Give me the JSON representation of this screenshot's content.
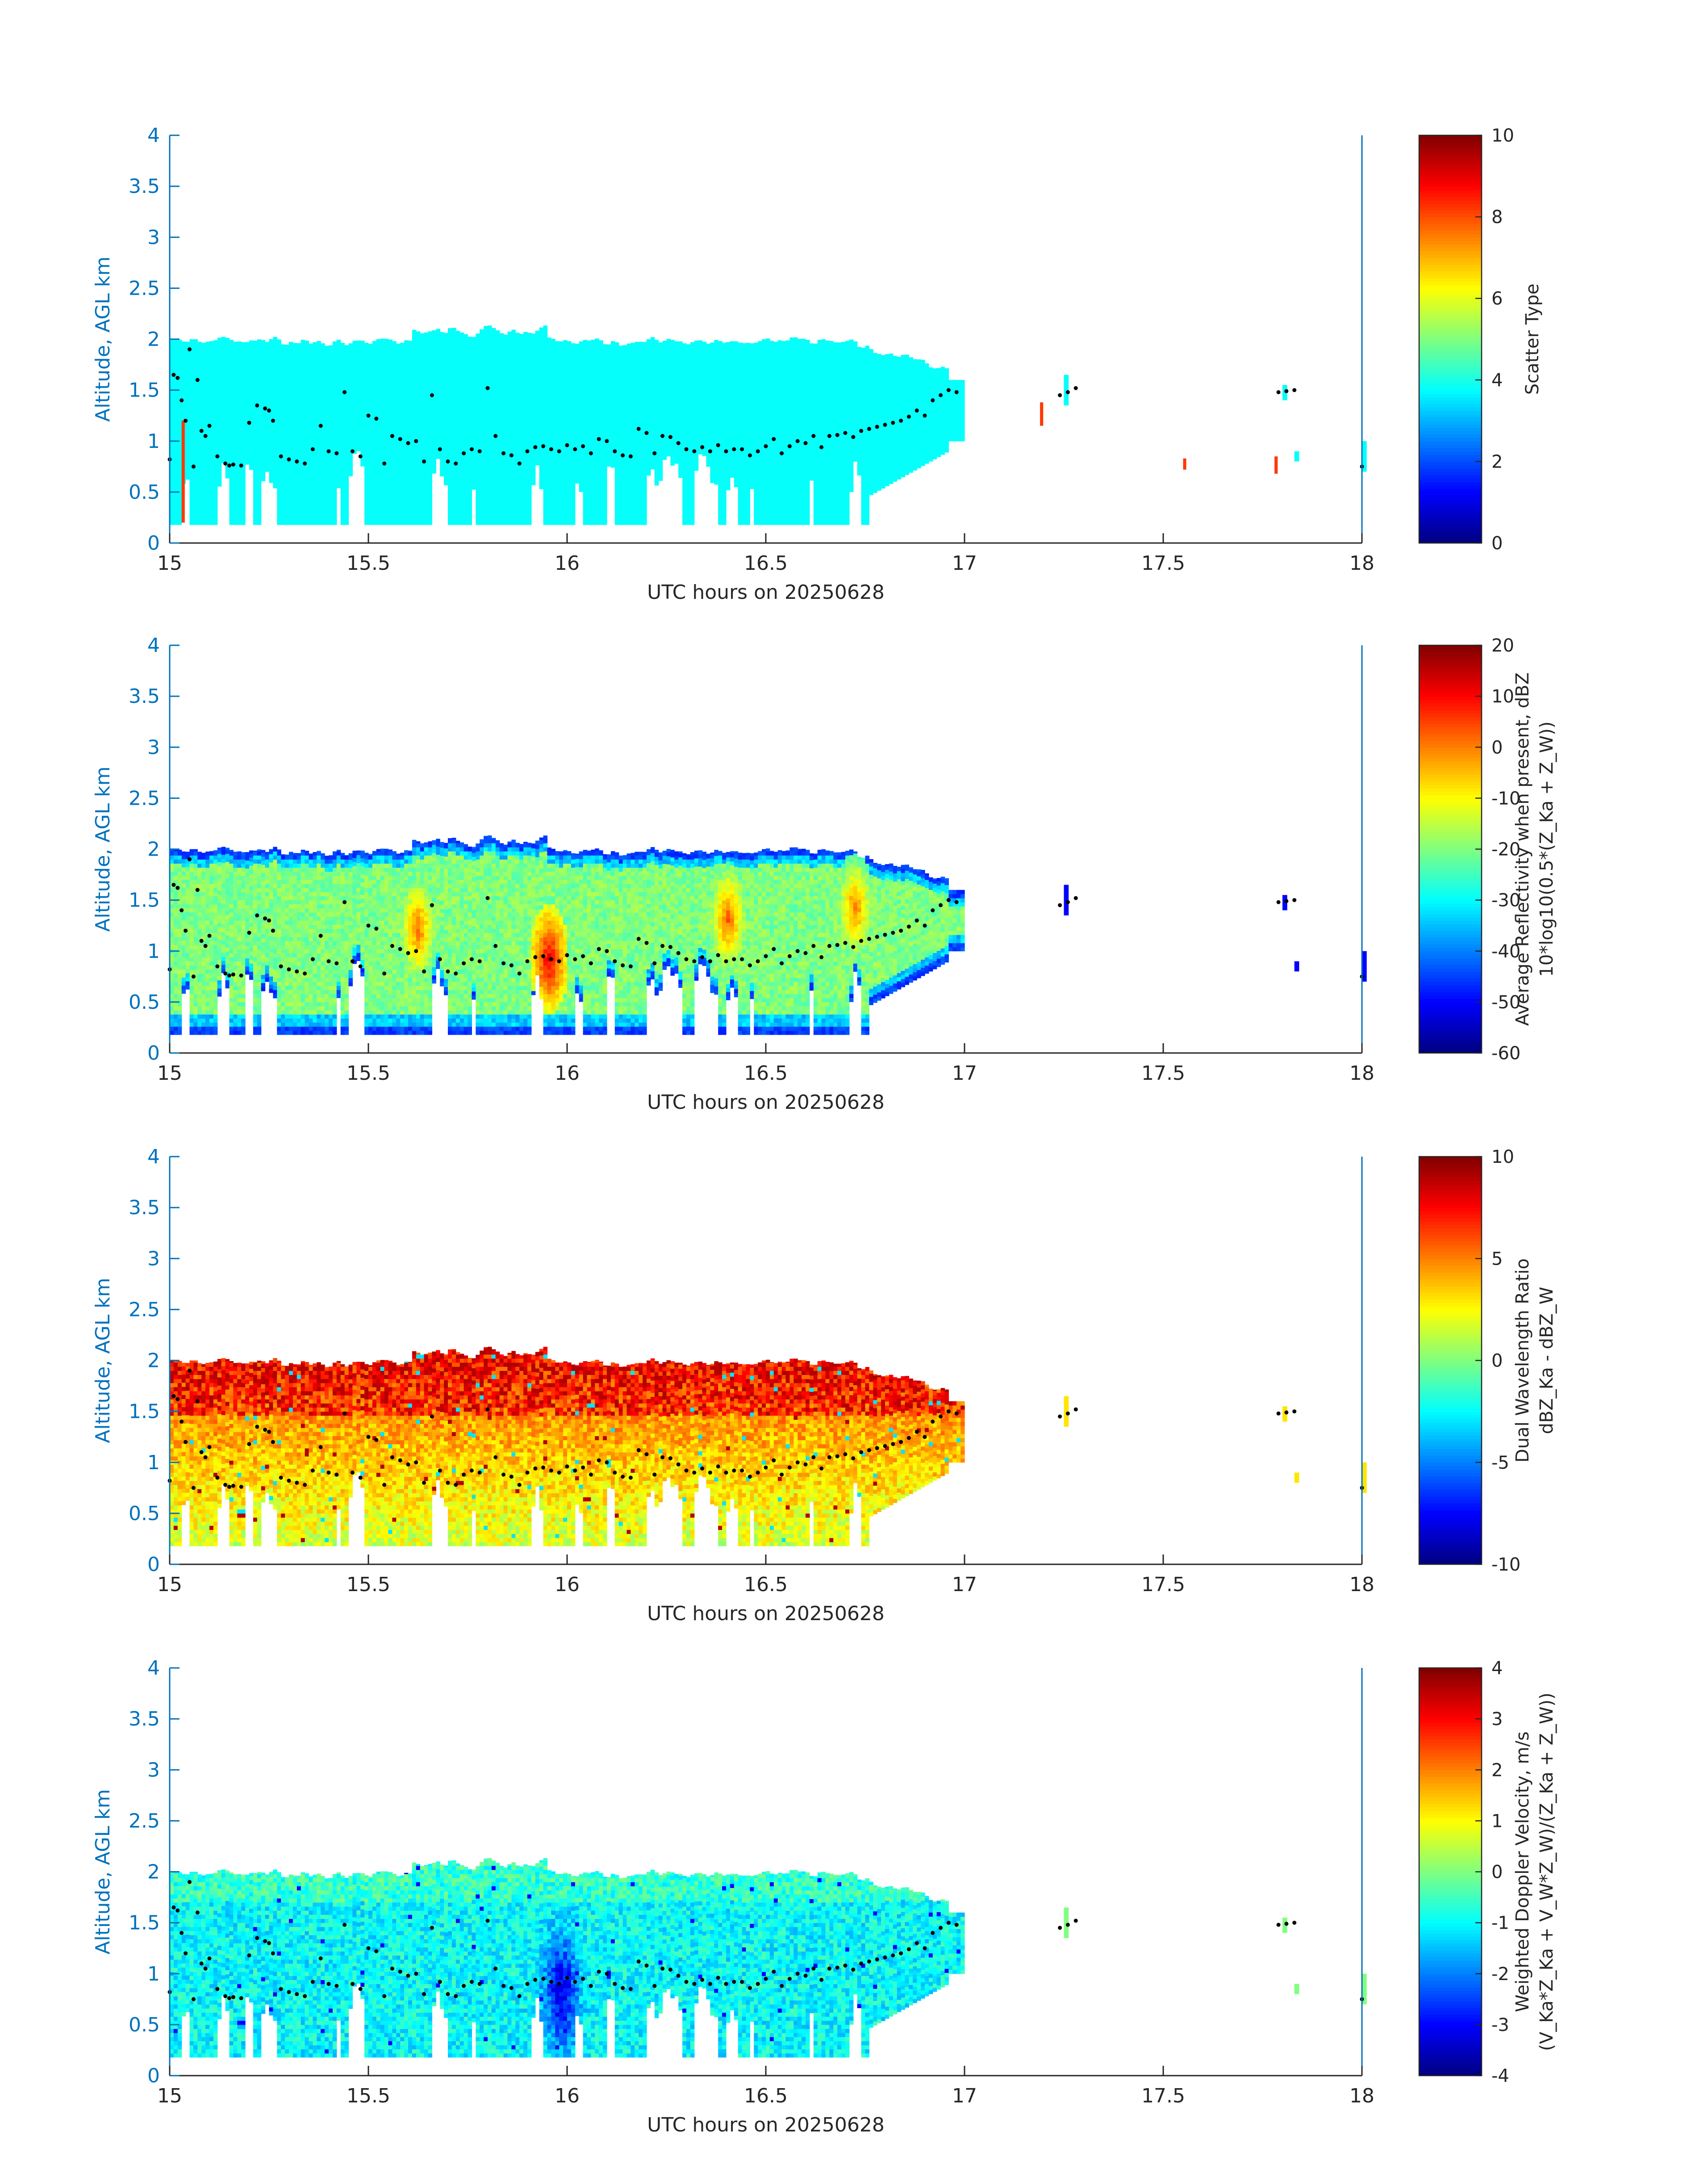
{
  "chart_data": [
    {
      "type": "heatmap",
      "title": "",
      "xlabel": "UTC hours on 20250628",
      "ylabel": "Altitude, AGL km",
      "xlim": [
        15,
        18
      ],
      "ylim": [
        0,
        4
      ],
      "xticks": [
        "15",
        "15.5",
        "16",
        "16.5",
        "17",
        "17.5",
        "18"
      ],
      "yticks": [
        "0",
        "0.5",
        "1",
        "1.5",
        "2",
        "2.5",
        "3",
        "3.5",
        "4"
      ],
      "colorbar": {
        "label_lines": [
          "Scatter Type"
        ],
        "range": [
          0,
          10
        ],
        "ticks": [
          "0",
          "2",
          "4",
          "6",
          "8",
          "10"
        ],
        "colormap": "jet"
      },
      "field": "scatter_type",
      "dominant_value": 3.8,
      "cloud_base_km": 0.8,
      "cloud_top_km": 2.0,
      "cloud_time_range": [
        15.0,
        17.0
      ],
      "scattered_echoes": [
        {
          "x": 17.25,
          "y_range": [
            1.35,
            1.65
          ]
        },
        {
          "x": 17.8,
          "y_range": [
            1.4,
            1.55
          ]
        },
        {
          "x": 17.83,
          "y_range": [
            0.8,
            0.9
          ]
        },
        {
          "x": 18.0,
          "y_range": [
            0.7,
            1.0
          ]
        }
      ],
      "highlight_echoes": [
        {
          "x": 15.03,
          "y_range": [
            0.2,
            1.2
          ],
          "value": 8.2
        },
        {
          "x": 17.19,
          "y_range": [
            1.15,
            1.38
          ],
          "value": 8.2
        },
        {
          "x": 17.55,
          "y_range": [
            0.72,
            0.83
          ],
          "value": 8.2
        },
        {
          "x": 17.78,
          "y_range": [
            0.68,
            0.85
          ],
          "value": 8.2
        }
      ]
    },
    {
      "type": "heatmap",
      "title": "",
      "xlabel": "UTC hours on 20250628",
      "ylabel": "Altitude, AGL km",
      "xlim": [
        15,
        18
      ],
      "ylim": [
        0,
        4
      ],
      "xticks": [
        "15",
        "15.5",
        "16",
        "16.5",
        "17",
        "17.5",
        "18"
      ],
      "yticks": [
        "0",
        "0.5",
        "1",
        "1.5",
        "2",
        "2.5",
        "3",
        "3.5",
        "4"
      ],
      "colorbar": {
        "label_lines": [
          "Average Reflectivity when present, dBZ",
          "10*log10(0.5*(Z_Ka + Z_W))"
        ],
        "range": [
          -60,
          20
        ],
        "ticks": [
          "-60",
          "-50",
          "-40",
          "-30",
          "-20",
          "-10",
          "0",
          "10",
          "20"
        ],
        "colormap": "jet"
      },
      "field": "reflectivity_dbz",
      "edge_value": -48,
      "interior_value": -20,
      "core_maxima": [
        {
          "x": 15.62,
          "y": 1.2,
          "value": 2
        },
        {
          "x": 15.95,
          "y": 0.9,
          "value": 12
        },
        {
          "x": 16.4,
          "y": 1.3,
          "value": 3
        },
        {
          "x": 16.72,
          "y": 1.4,
          "value": 1
        }
      ]
    },
    {
      "type": "heatmap",
      "title": "",
      "xlabel": "UTC hours on 20250628",
      "ylabel": "Altitude, AGL km",
      "xlim": [
        15,
        18
      ],
      "ylim": [
        0,
        4
      ],
      "xticks": [
        "15",
        "15.5",
        "16",
        "16.5",
        "17",
        "17.5",
        "18"
      ],
      "yticks": [
        "0",
        "0.5",
        "1",
        "1.5",
        "2",
        "2.5",
        "3",
        "3.5",
        "4"
      ],
      "colorbar": {
        "label_lines": [
          "Dual Wavelength Ratio",
          "dBZ_Ka - dBZ_W"
        ],
        "range": [
          -10,
          10
        ],
        "ticks": [
          "-10",
          "-5",
          "0",
          "5",
          "10"
        ],
        "colormap": "jet"
      },
      "field": "dual_wavelength_ratio_db",
      "lower_cloud_value": 2,
      "upper_cloud_value": 5,
      "max_value": 9
    },
    {
      "type": "heatmap",
      "title": "",
      "xlabel": "UTC hours on 20250628",
      "ylabel": "Altitude, AGL km",
      "xlim": [
        15,
        18
      ],
      "ylim": [
        0,
        4
      ],
      "xticks": [
        "15",
        "15.5",
        "16",
        "16.5",
        "17",
        "17.5",
        "18"
      ],
      "yticks": [
        "0",
        "0.5",
        "1",
        "1.5",
        "2",
        "2.5",
        "3",
        "3.5",
        "4"
      ],
      "colorbar": {
        "label_lines": [
          "Weighted Doppler Velocity, m/s",
          "(V_Ka*Z_Ka + V_W*Z_W)/(Z_Ka + Z_W))"
        ],
        "range": [
          -4,
          4
        ],
        "ticks": [
          "-4",
          "-3",
          "-2",
          "-1",
          "0",
          "1",
          "2",
          "3",
          "4"
        ],
        "colormap": "jet"
      },
      "field": "weighted_doppler_velocity_ms",
      "typical_value": -1,
      "min_value": -3.2,
      "max_value": 1.2
    }
  ],
  "overlay_points": {
    "description_of_marks": "black dots (cloud base height)",
    "x": [
      15.0,
      15.01,
      15.02,
      15.03,
      15.04,
      15.05,
      15.06,
      15.07,
      15.08,
      15.09,
      15.1,
      15.12,
      15.14,
      15.15,
      15.16,
      15.18,
      15.2,
      15.22,
      15.24,
      15.25,
      15.26,
      15.28,
      15.3,
      15.32,
      15.34,
      15.36,
      15.38,
      15.4,
      15.42,
      15.44,
      15.46,
      15.48,
      15.5,
      15.52,
      15.54,
      15.56,
      15.58,
      15.6,
      15.62,
      15.64,
      15.66,
      15.68,
      15.7,
      15.72,
      15.74,
      15.76,
      15.78,
      15.8,
      15.82,
      15.84,
      15.86,
      15.88,
      15.9,
      15.92,
      15.94,
      15.96,
      15.98,
      16.0,
      16.02,
      16.04,
      16.06,
      16.08,
      16.1,
      16.12,
      16.14,
      16.16,
      16.18,
      16.2,
      16.22,
      16.24,
      16.26,
      16.28,
      16.3,
      16.32,
      16.34,
      16.36,
      16.38,
      16.4,
      16.42,
      16.44,
      16.46,
      16.48,
      16.5,
      16.52,
      16.54,
      16.56,
      16.58,
      16.6,
      16.62,
      16.64,
      16.66,
      16.68,
      16.7,
      16.72,
      16.74,
      16.76,
      16.78,
      16.8,
      16.82,
      16.84,
      16.86,
      16.88,
      16.9,
      16.92,
      16.94,
      16.96,
      16.98,
      17.24,
      17.26,
      17.28,
      17.79,
      17.81,
      17.83,
      18.0
    ],
    "y": [
      0.82,
      1.65,
      1.62,
      1.4,
      1.2,
      1.9,
      0.75,
      1.6,
      1.1,
      1.05,
      1.15,
      0.85,
      0.78,
      0.76,
      0.77,
      0.76,
      1.18,
      1.35,
      1.32,
      1.3,
      1.2,
      0.85,
      0.82,
      0.8,
      0.78,
      0.92,
      1.15,
      0.9,
      0.88,
      1.48,
      0.9,
      0.85,
      1.25,
      1.22,
      0.78,
      1.05,
      1.02,
      0.98,
      1.0,
      0.8,
      1.45,
      0.92,
      0.8,
      0.78,
      0.88,
      0.92,
      0.9,
      1.52,
      1.05,
      0.88,
      0.86,
      0.78,
      0.9,
      0.94,
      0.95,
      0.92,
      0.9,
      0.96,
      0.92,
      0.95,
      0.88,
      1.02,
      1.0,
      0.9,
      0.86,
      0.85,
      1.12,
      1.08,
      0.88,
      1.05,
      1.04,
      0.98,
      0.92,
      0.9,
      0.94,
      0.9,
      0.96,
      0.9,
      0.92,
      0.92,
      0.86,
      0.9,
      0.95,
      1.02,
      0.88,
      0.95,
      1.0,
      0.98,
      1.05,
      0.94,
      1.05,
      1.06,
      1.08,
      1.04,
      1.1,
      1.12,
      1.14,
      1.16,
      1.18,
      1.2,
      1.24,
      1.3,
      1.25,
      1.4,
      1.45,
      1.5,
      1.48,
      1.45,
      1.48,
      1.52,
      1.48,
      1.49,
      1.5,
      0.75
    ]
  }
}
